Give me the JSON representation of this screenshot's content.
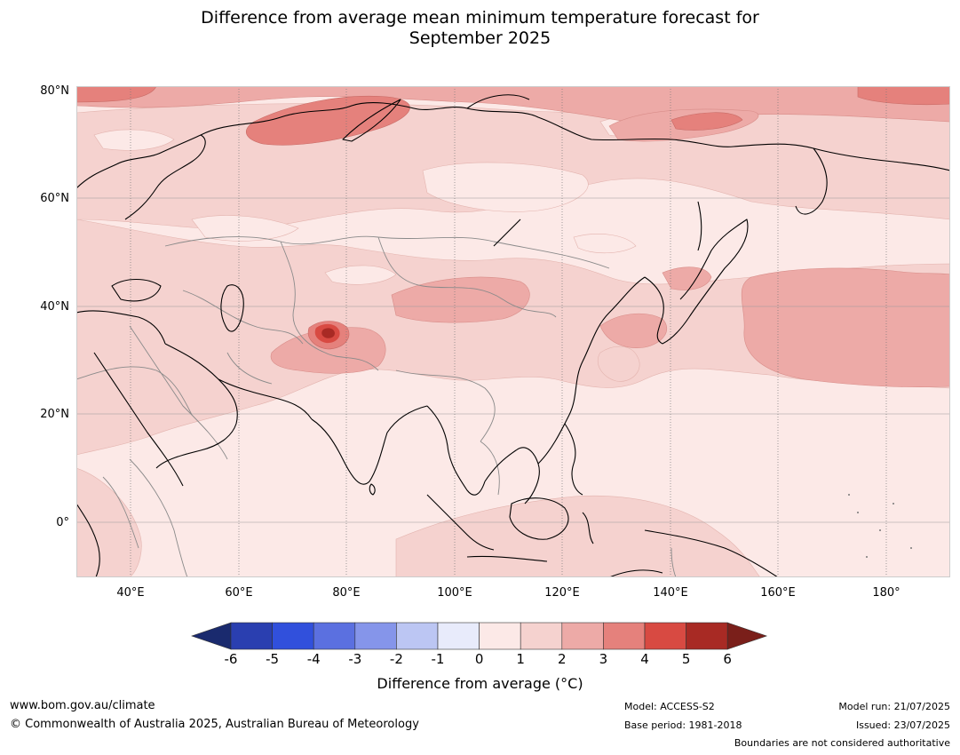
{
  "title": {
    "line1": "Difference from average mean minimum temperature forecast for",
    "line2": "September 2025"
  },
  "axes": {
    "lat_labels": [
      "80°N",
      "60°N",
      "40°N",
      "20°N",
      "0°"
    ],
    "lon_labels": [
      "40°E",
      "60°E",
      "80°E",
      "100°E",
      "120°E",
      "140°E",
      "160°E",
      "180°"
    ],
    "lat_range": [
      -10,
      80
    ],
    "lon_range": [
      30,
      192
    ]
  },
  "colorbar": {
    "title": "Difference from average (°C)",
    "ticks": [
      "-6",
      "-5",
      "-4",
      "-3",
      "-2",
      "-1",
      "0",
      "1",
      "2",
      "3",
      "4",
      "5",
      "6"
    ],
    "colors": [
      "#1a2a6e",
      "#2a3fb0",
      "#3150dc",
      "#5b70e0",
      "#8595ea",
      "#bcc6f3",
      "#e8ebfb",
      "#fce9e7",
      "#f5d2cf",
      "#edaaa7",
      "#e5817c",
      "#d84a42",
      "#a82a24",
      "#7a1f1a"
    ]
  },
  "footer": {
    "url": "www.bom.gov.au/climate",
    "copyright": "© Commonwealth of Australia 2025, Australian Bureau of Meteorology",
    "model": "Model: ACCESS-S2",
    "base_period": "Base period: 1981-2018",
    "model_run": "Model run: 21/07/2025",
    "issued": "Issued: 23/07/2025",
    "disclaimer": "Boundaries are not considered authoritative"
  }
}
